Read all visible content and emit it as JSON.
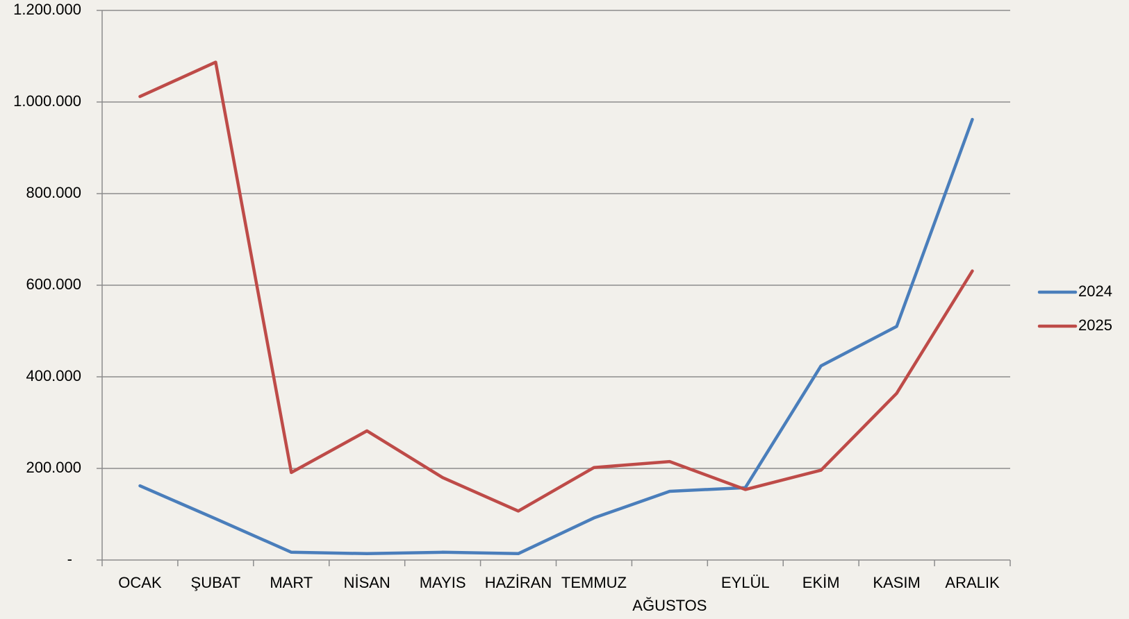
{
  "chart_data": {
    "type": "line",
    "categories": [
      "OCAK",
      "ŞUBAT",
      "MART",
      "NİSAN",
      "MAYIS",
      "HAZİRAN",
      "TEMMUZ",
      "AĞUSTOS",
      "EYLÜL",
      "EKİM",
      "KASIM",
      "ARALIK"
    ],
    "series": [
      {
        "name": "2024",
        "color": "#4a7ebb",
        "values": [
          162000,
          90000,
          17000,
          14000,
          17000,
          14000,
          92000,
          150000,
          158000,
          424000,
          510000,
          962000
        ]
      },
      {
        "name": "2025",
        "color": "#be4b48",
        "values": [
          1012000,
          1087000,
          191000,
          282000,
          180000,
          107000,
          202000,
          215000,
          154000,
          196000,
          364000,
          631000
        ]
      }
    ],
    "ylim": [
      0,
      1200000
    ],
    "yticks": [
      {
        "value": 0,
        "label": "-"
      },
      {
        "value": 200000,
        "label": "200.000"
      },
      {
        "value": 400000,
        "label": "400.000"
      },
      {
        "value": 600000,
        "label": "600.000"
      },
      {
        "value": 800000,
        "label": "800.000"
      },
      {
        "value": 1000000,
        "label": "1.000.000"
      },
      {
        "value": 1200000,
        "label": "1.200.000"
      }
    ],
    "grid": true,
    "legend": "right"
  }
}
